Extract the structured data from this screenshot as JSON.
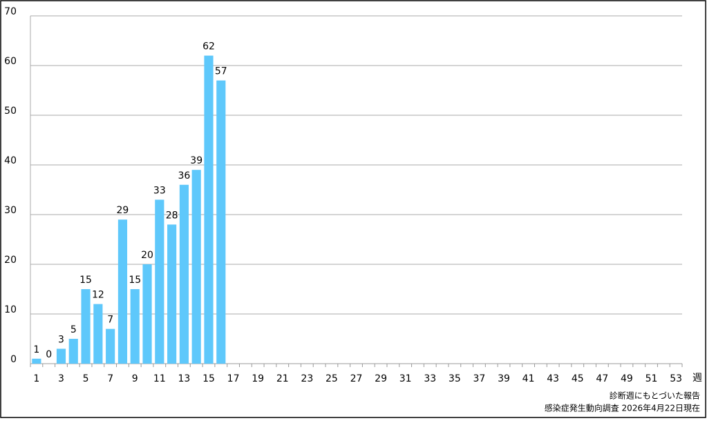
{
  "chart_data": {
    "type": "bar",
    "x_label": "週",
    "notes": [
      "診断週にもとづいた報告",
      "感染症発生動向調査 2026年4月22日現在"
    ],
    "categories": [
      "1",
      null,
      "3",
      null,
      "5",
      null,
      "7",
      null,
      "9",
      null,
      "11",
      null,
      "13",
      null,
      "15",
      null,
      "17",
      null,
      "19",
      null,
      "21",
      null,
      "23",
      null,
      "25",
      null,
      "27",
      null,
      "29",
      null,
      "31",
      null,
      "33",
      null,
      "35",
      null,
      "37",
      null,
      "39",
      null,
      "41",
      null,
      "43",
      null,
      "45",
      null,
      "47",
      null,
      "49",
      null,
      "51",
      null,
      "53"
    ],
    "values": [
      1,
      0,
      3,
      5,
      15,
      12,
      7,
      29,
      15,
      20,
      33,
      28,
      36,
      39,
      62,
      57,
      null,
      null,
      null,
      null,
      null,
      null,
      null,
      null,
      null,
      null,
      null,
      null,
      null,
      null,
      null,
      null,
      null,
      null,
      null,
      null,
      null,
      null,
      null,
      null,
      null,
      null,
      null,
      null,
      null,
      null,
      null,
      null,
      null,
      null,
      null,
      null,
      null
    ],
    "color": "#5ec8fb",
    "ylim": [
      0,
      70
    ],
    "yticks": [
      0,
      10,
      20,
      30,
      40,
      50,
      60,
      70
    ],
    "grid": true
  }
}
